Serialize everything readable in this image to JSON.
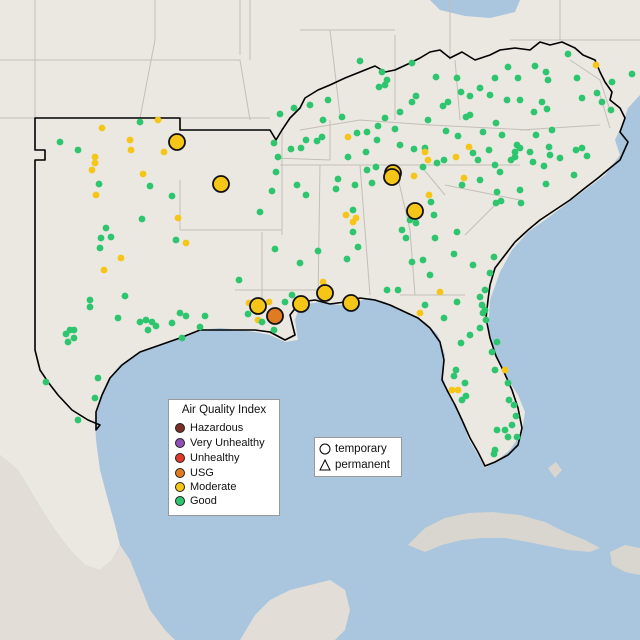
{
  "colors": {
    "ocean": "#a9c6de",
    "land": "#ebe7e1",
    "land_south": "#e2ddd6",
    "cuba": "#d9d5cf",
    "state_line": "#c4bfb8",
    "region_outline": "#000000",
    "good": "#2ec56f",
    "moderate": "#f5c518",
    "usg": "#e07b22",
    "unhealthy": "#e03a2d",
    "very_unhealthy": "#8e4fb6",
    "hazardous": "#7a2e24"
  },
  "legend": {
    "title": "Air Quality Index",
    "items": [
      {
        "label": "Hazardous",
        "color": "#7a2e24"
      },
      {
        "label": "Very Unhealthy",
        "color": "#8e4fb6"
      },
      {
        "label": "Unhealthy",
        "color": "#e03a2d"
      },
      {
        "label": "USG",
        "color": "#e07b22"
      },
      {
        "label": "Moderate",
        "color": "#f5c518"
      },
      {
        "label": "Good",
        "color": "#2ec56f"
      }
    ]
  },
  "monitor_types": {
    "temporary": "temporary",
    "permanent": "permanent"
  },
  "large_markers": [
    {
      "aqi": "moderate"
    },
    {
      "aqi": "moderate"
    },
    {
      "aqi": "moderate"
    },
    {
      "aqi": "moderate"
    },
    {
      "aqi": "moderate"
    },
    {
      "aqi": "moderate"
    },
    {
      "aqi": "moderate"
    },
    {
      "aqi": "usg"
    },
    {
      "aqi": "moderate"
    },
    {
      "aqi": "moderate"
    },
    {
      "aqi": "moderate"
    }
  ]
}
